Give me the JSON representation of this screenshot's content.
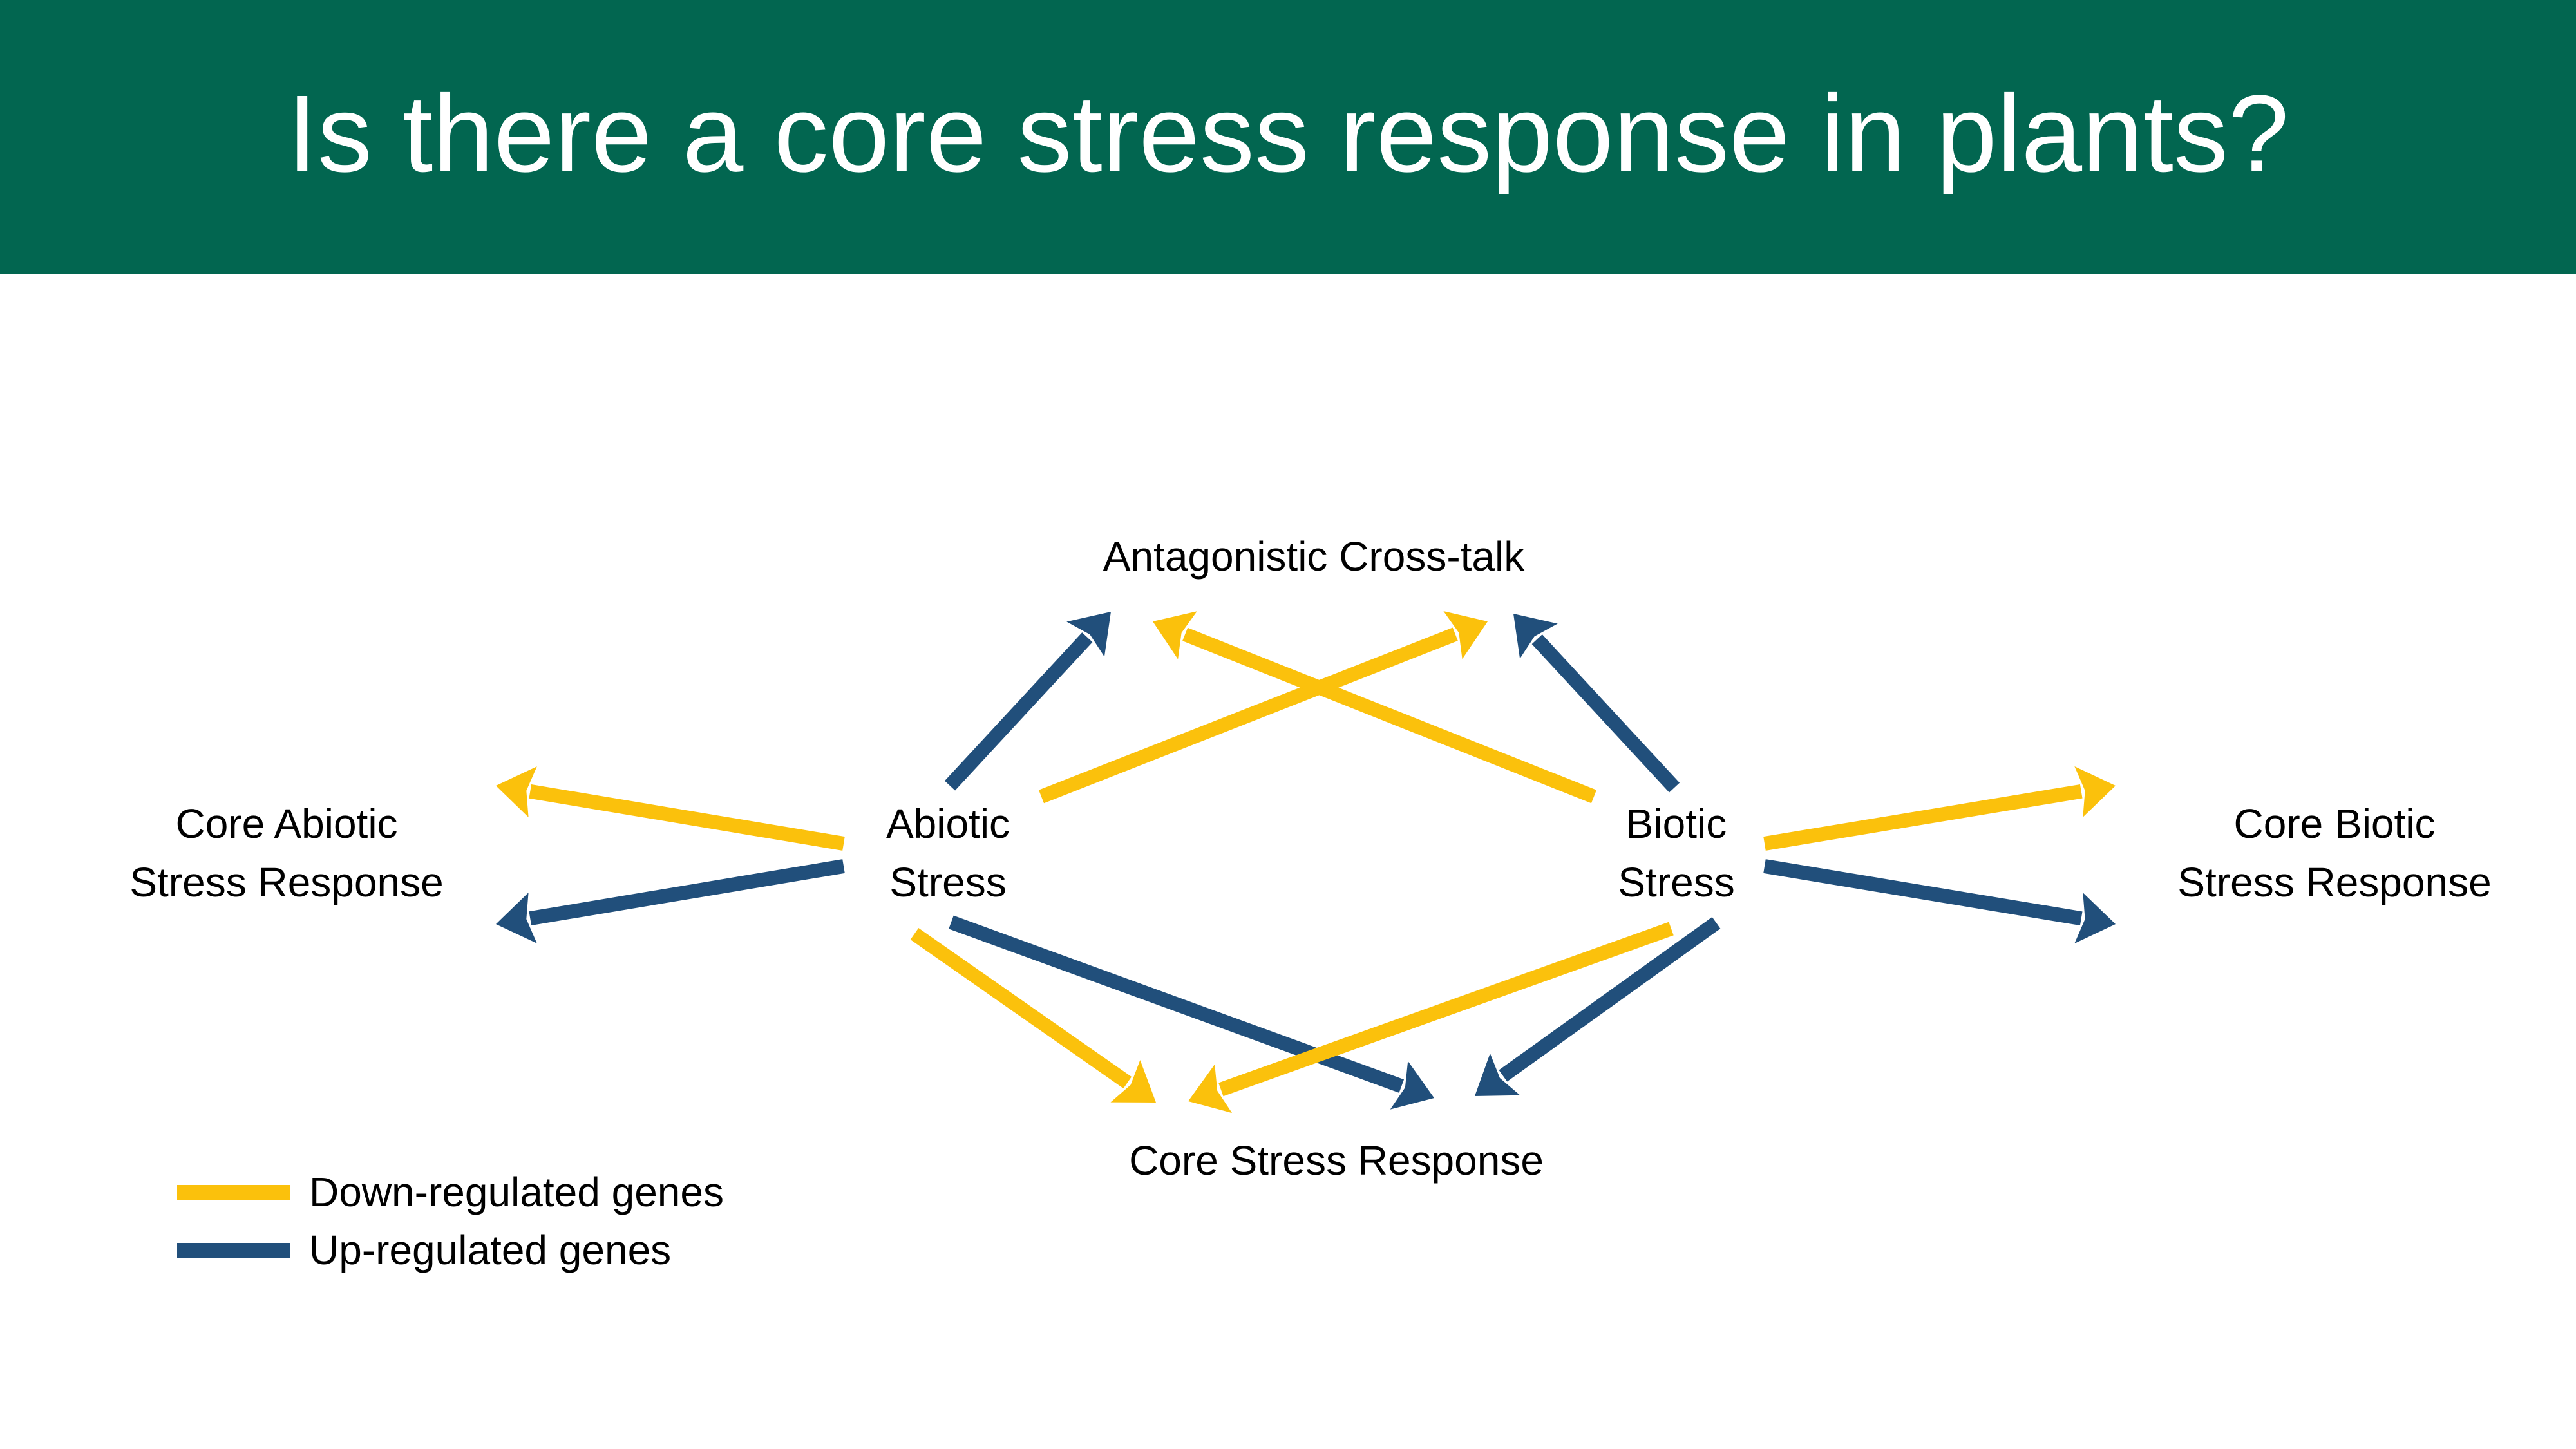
{
  "title": "Is there a core stress response in plants?",
  "colors": {
    "header_bg": "#026650",
    "down_regulated": "#FBC10C",
    "up_regulated": "#214F7B"
  },
  "nodes": {
    "antagonistic": {
      "line1": "Antagonistic Cross-talk"
    },
    "core_abiotic": {
      "line1": "Core Abiotic",
      "line2": "Stress Response"
    },
    "abiotic": {
      "line1": "Abiotic",
      "line2": "Stress"
    },
    "biotic": {
      "line1": "Biotic",
      "line2": "Stress"
    },
    "core_biotic": {
      "line1": "Core Biotic",
      "line2": "Stress Response"
    },
    "core_stress": {
      "line1": "Core Stress Response"
    }
  },
  "legend": {
    "down_label": "Down-regulated genes",
    "up_label": "Up-regulated genes"
  },
  "edges": [
    {
      "from": "abiotic",
      "to": "antagonistic",
      "type": "up"
    },
    {
      "from": "abiotic",
      "to": "antagonistic",
      "type": "down"
    },
    {
      "from": "biotic",
      "to": "antagonistic",
      "type": "down"
    },
    {
      "from": "biotic",
      "to": "antagonistic",
      "type": "up"
    },
    {
      "from": "abiotic",
      "to": "core_abiotic",
      "type": "down"
    },
    {
      "from": "abiotic",
      "to": "core_abiotic",
      "type": "up"
    },
    {
      "from": "biotic",
      "to": "core_biotic",
      "type": "down"
    },
    {
      "from": "biotic",
      "to": "core_biotic",
      "type": "up"
    },
    {
      "from": "abiotic",
      "to": "core_stress",
      "type": "down"
    },
    {
      "from": "abiotic",
      "to": "core_stress",
      "type": "up"
    },
    {
      "from": "biotic",
      "to": "core_stress",
      "type": "down"
    },
    {
      "from": "biotic",
      "to": "core_stress",
      "type": "up"
    }
  ]
}
